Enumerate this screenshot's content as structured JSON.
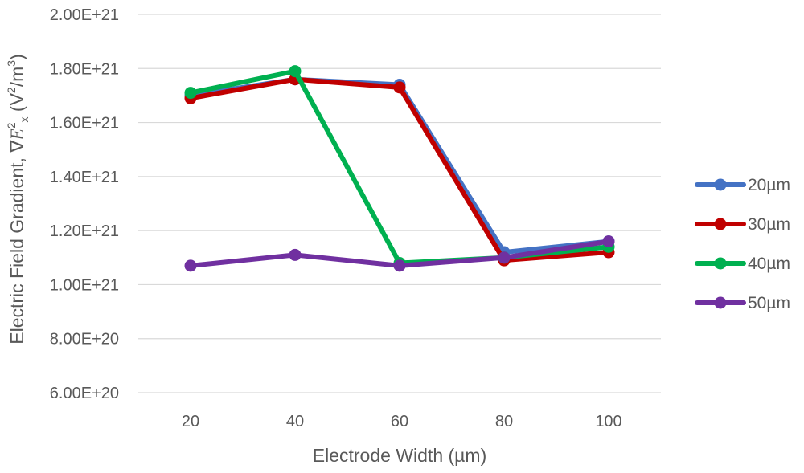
{
  "chart_data": {
    "type": "line",
    "title": "",
    "xlabel": "Electrode Width (µm)",
    "ylabel": {
      "prefix": "Electric Field Gradient, ∇",
      "var": "E",
      "sup": "2",
      "sub": "x",
      "unit_open": " (V",
      "unit_sup1": "2",
      "unit_mid": "/m",
      "unit_sup2": "3",
      "unit_close": ")"
    },
    "categories": [
      "20",
      "40",
      "60",
      "80",
      "100"
    ],
    "yticks": [
      "6.00E+20",
      "8.00E+20",
      "1.00E+21",
      "1.20E+21",
      "1.40E+21",
      "1.60E+21",
      "1.80E+21",
      "2.00E+21"
    ],
    "ylim": [
      6e+20,
      2e+21
    ],
    "grid": true,
    "legend_position": "right",
    "series": [
      {
        "name": "20µm",
        "color": "#4472C4",
        "values": [
          1.7e+21,
          1.76e+21,
          1.74e+21,
          1.12e+21,
          1.16e+21
        ]
      },
      {
        "name": "30µm",
        "color": "#C00000",
        "values": [
          1.69e+21,
          1.76e+21,
          1.73e+21,
          1.09e+21,
          1.12e+21
        ]
      },
      {
        "name": "40µm",
        "color": "#00B050",
        "values": [
          1.71e+21,
          1.79e+21,
          1.08e+21,
          1.1e+21,
          1.14e+21
        ]
      },
      {
        "name": "50µm",
        "color": "#7030A0",
        "values": [
          1.07e+21,
          1.11e+21,
          1.07e+21,
          1.1e+21,
          1.16e+21
        ]
      }
    ]
  }
}
